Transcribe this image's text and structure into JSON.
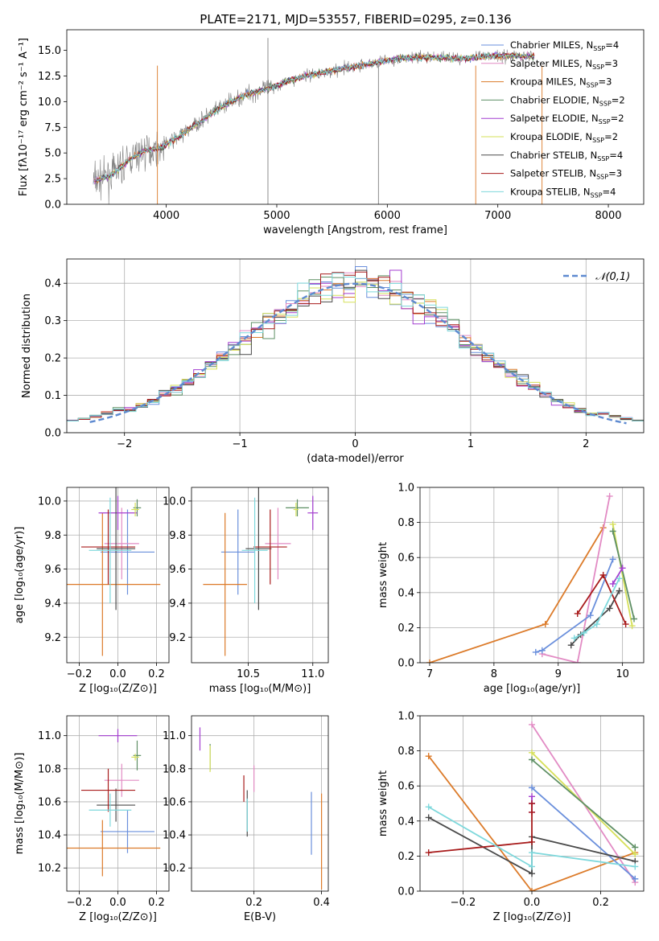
{
  "title": "PLATE=2171, MJD=53557, FIBERID=0295, z=0.136",
  "colors": {
    "Chabrier MILES": "#6a8fdc",
    "Salpeter MILES": "#e28bc4",
    "Kroupa MILES": "#dc7b2a",
    "Chabrier ELODIE": "#5e8f64",
    "Salpeter ELODIE": "#a43ed0",
    "Kroupa ELODIE": "#d6e05a",
    "Chabrier STELIB": "#4a4a4a",
    "Salpeter STELIB": "#a81c1c",
    "Kroupa STELIB": "#7ed8dc",
    "data": "#7f7f7f",
    "normal": "#5e8ad0"
  },
  "chart_data": [
    {
      "id": "spectrum",
      "type": "line",
      "xlabel": "wavelength [Angstrom, rest frame]",
      "ylabel": "Flux [fλ10⁻¹⁷ erg cm⁻² s⁻¹ A⁻¹]",
      "xlim": [
        3100,
        8320
      ],
      "ylim": [
        0,
        17
      ],
      "xticks": [
        4000,
        5000,
        6000,
        7000,
        8000
      ],
      "yticks": [
        0.0,
        2.5,
        5.0,
        7.5,
        10.0,
        12.5,
        15.0
      ],
      "legend_placement": "upper-right",
      "data_series_x": [
        3350,
        3500,
        3650,
        3800,
        3950,
        4100,
        4300,
        4500,
        4700,
        4900,
        5100,
        5300,
        5500,
        5700,
        5900,
        6100,
        6300,
        6500,
        6700,
        6900,
        7100,
        7300
      ],
      "data_series_y": [
        2.3,
        2.8,
        4.2,
        5.2,
        5.5,
        6.5,
        8.0,
        9.5,
        10.6,
        11.2,
        12.0,
        12.6,
        13.0,
        13.4,
        13.8,
        14.2,
        14.3,
        14.3,
        14.2,
        14.4,
        14.5,
        14.4
      ],
      "series": [
        {
          "name": "Chabrier MILES, N_SSP=4",
          "model": "Chabrier MILES"
        },
        {
          "name": "Salpeter MILES, N_SSP=3",
          "model": "Salpeter MILES"
        },
        {
          "name": "Kroupa MILES, N_SSP=3",
          "model": "Kroupa MILES"
        },
        {
          "name": "Chabrier ELODIE, N_SSP=2",
          "model": "Chabrier ELODIE"
        },
        {
          "name": "Salpeter ELODIE, N_SSP=2",
          "model": "Salpeter ELODIE"
        },
        {
          "name": "Kroupa ELODIE, N_SSP=2",
          "model": "Kroupa ELODIE"
        },
        {
          "name": "Chabrier STELIB, N_SSP=4",
          "model": "Chabrier STELIB"
        },
        {
          "name": "Salpeter STELIB, N_SSP=3",
          "model": "Salpeter STELIB"
        },
        {
          "name": "Kroupa STELIB, N_SSP=4",
          "model": "Kroupa STELIB"
        }
      ]
    },
    {
      "id": "residuals",
      "type": "histogram",
      "xlabel": "(data-model)/error",
      "ylabel": "Normed distribution",
      "xlim": [
        -2.5,
        2.5
      ],
      "ylim": [
        0,
        0.465
      ],
      "xticks": [
        -2,
        -1,
        0,
        1,
        2
      ],
      "yticks": [
        0.0,
        0.1,
        0.2,
        0.3,
        0.4
      ],
      "legend": "𝒩(0,1)",
      "legend_placement": "upper-right",
      "grid": true,
      "bin_width": 0.1,
      "bin_start": -2.5
    },
    {
      "id": "age-vs-z",
      "type": "errorbar",
      "xlabel": "Z [log₁₀(Z/Z⊙)]",
      "ylabel": "age  [log₁₀(age/yr)]",
      "xlim": [
        -0.265,
        0.265
      ],
      "ylim": [
        9.05,
        10.08
      ],
      "xticks": [
        -0.2,
        0.0,
        0.2
      ],
      "yticks": [
        9.2,
        9.4,
        9.6,
        9.8,
        10.0
      ],
      "points": [
        {
          "model": "Chabrier MILES",
          "x": 0.05,
          "y": 9.7,
          "xerr": 0.14,
          "yerr": 0.25
        },
        {
          "model": "Salpeter MILES",
          "x": 0.02,
          "y": 9.75,
          "xerr": 0.09,
          "yerr": 0.21
        },
        {
          "model": "Kroupa MILES",
          "x": -0.08,
          "y": 9.51,
          "xerr": 0.3,
          "yerr": 0.42
        },
        {
          "model": "Chabrier ELODIE",
          "x": 0.1,
          "y": 9.96,
          "xerr": 0.02,
          "yerr": 0.05
        },
        {
          "model": "Salpeter ELODIE",
          "x": 0.0,
          "y": 9.93,
          "xerr": 0.1,
          "yerr": 0.1
        },
        {
          "model": "Kroupa ELODIE",
          "x": 0.09,
          "y": 9.95,
          "xerr": 0.02,
          "yerr": 0.04
        },
        {
          "model": "Chabrier STELIB",
          "x": -0.01,
          "y": 9.72,
          "xerr": 0.1,
          "yerr": 0.36
        },
        {
          "model": "Salpeter STELIB",
          "x": -0.05,
          "y": 9.73,
          "xerr": 0.14,
          "yerr": 0.22
        },
        {
          "model": "Kroupa STELIB",
          "x": -0.04,
          "y": 9.71,
          "xerr": 0.11,
          "yerr": 0.31
        }
      ]
    },
    {
      "id": "age-vs-mass",
      "type": "errorbar",
      "xlabel": "mass [log₁₀(M/M⊙)]",
      "ylabel": "",
      "xlim": [
        10.06,
        11.12
      ],
      "ylim": [
        9.05,
        10.08
      ],
      "xticks": [
        10.5,
        11.0
      ],
      "yticks": [
        9.2,
        9.4,
        9.6,
        9.8,
        10.0
      ],
      "points": [
        {
          "model": "Chabrier MILES",
          "x": 10.42,
          "y": 9.7,
          "xerr": 0.13,
          "yerr": 0.25
        },
        {
          "model": "Salpeter MILES",
          "x": 10.73,
          "y": 9.75,
          "xerr": 0.1,
          "yerr": 0.21
        },
        {
          "model": "Kroupa MILES",
          "x": 10.32,
          "y": 9.51,
          "xerr": 0.17,
          "yerr": 0.42
        },
        {
          "model": "Chabrier ELODIE",
          "x": 10.88,
          "y": 9.96,
          "xerr": 0.09,
          "yerr": 0.05
        },
        {
          "model": "Salpeter ELODIE",
          "x": 11.0,
          "y": 9.93,
          "xerr": 0.04,
          "yerr": 0.1
        },
        {
          "model": "Kroupa ELODIE",
          "x": 10.87,
          "y": 9.95,
          "xerr": 0.02,
          "yerr": 0.04
        },
        {
          "model": "Chabrier STELIB",
          "x": 10.58,
          "y": 9.72,
          "xerr": 0.1,
          "yerr": 0.36
        },
        {
          "model": "Salpeter STELIB",
          "x": 10.67,
          "y": 9.73,
          "xerr": 0.13,
          "yerr": 0.22
        },
        {
          "model": "Kroupa STELIB",
          "x": 10.55,
          "y": 9.71,
          "xerr": 0.1,
          "yerr": 0.31
        }
      ]
    },
    {
      "id": "weight-vs-age",
      "type": "line",
      "xlabel": "age  [log₁₀(age/yr)]",
      "ylabel": "mass weight",
      "xlim": [
        6.85,
        10.33
      ],
      "ylim": [
        0,
        1
      ],
      "xticks": [
        7,
        8,
        9,
        10
      ],
      "yticks": [
        0.0,
        0.2,
        0.4,
        0.6,
        0.8,
        1.0
      ],
      "series": [
        {
          "model": "Kroupa MILES",
          "x": [
            7.0,
            8.8,
            9.7
          ],
          "y": [
            0.0,
            0.22,
            0.77
          ]
        },
        {
          "model": "Salpeter MILES",
          "x": [
            8.75,
            9.3,
            9.8
          ],
          "y": [
            0.05,
            0.0,
            0.95
          ]
        },
        {
          "model": "Chabrier MILES",
          "x": [
            8.65,
            8.75,
            9.5,
            9.85
          ],
          "y": [
            0.06,
            0.07,
            0.27,
            0.59
          ]
        },
        {
          "model": "Kroupa ELODIE",
          "x": [
            9.85,
            10.15
          ],
          "y": [
            0.79,
            0.21
          ]
        },
        {
          "model": "Chabrier ELODIE",
          "x": [
            9.85,
            10.18
          ],
          "y": [
            0.75,
            0.25
          ]
        },
        {
          "model": "Salpeter ELODIE",
          "x": [
            9.85,
            10.0
          ],
          "y": [
            0.45,
            0.54
          ]
        },
        {
          "model": "Chabrier STELIB",
          "x": [
            9.2,
            9.35,
            9.8,
            9.95
          ],
          "y": [
            0.1,
            0.16,
            0.31,
            0.41
          ]
        },
        {
          "model": "Salpeter STELIB",
          "x": [
            9.3,
            9.7,
            10.05
          ],
          "y": [
            0.28,
            0.5,
            0.22
          ]
        },
        {
          "model": "Kroupa STELIB",
          "x": [
            9.25,
            9.4,
            9.6,
            9.95
          ],
          "y": [
            0.14,
            0.17,
            0.22,
            0.48
          ]
        }
      ]
    },
    {
      "id": "mass-vs-z",
      "type": "errorbar",
      "xlabel": "Z [log₁₀(Z/Z⊙)]",
      "ylabel": "mass [log₁₀(M/M⊙)]",
      "xlim": [
        -0.265,
        0.265
      ],
      "ylim": [
        10.06,
        11.12
      ],
      "xticks": [
        -0.2,
        0.0,
        0.2
      ],
      "yticks": [
        10.2,
        10.4,
        10.6,
        10.8,
        11.0
      ],
      "points": [
        {
          "model": "Chabrier MILES",
          "x": 0.05,
          "y": 10.42,
          "xerr": 0.14,
          "yerr": 0.13
        },
        {
          "model": "Salpeter MILES",
          "x": 0.02,
          "y": 10.73,
          "xerr": 0.09,
          "yerr": 0.1
        },
        {
          "model": "Kroupa MILES",
          "x": -0.08,
          "y": 10.32,
          "xerr": 0.3,
          "yerr": 0.17
        },
        {
          "model": "Chabrier ELODIE",
          "x": 0.1,
          "y": 10.88,
          "xerr": 0.02,
          "yerr": 0.09
        },
        {
          "model": "Salpeter ELODIE",
          "x": 0.0,
          "y": 11.0,
          "xerr": 0.1,
          "yerr": 0.04
        },
        {
          "model": "Kroupa ELODIE",
          "x": 0.09,
          "y": 10.87,
          "xerr": 0.02,
          "yerr": 0.02
        },
        {
          "model": "Chabrier STELIB",
          "x": -0.01,
          "y": 10.58,
          "xerr": 0.1,
          "yerr": 0.1
        },
        {
          "model": "Salpeter STELIB",
          "x": -0.05,
          "y": 10.67,
          "xerr": 0.14,
          "yerr": 0.13
        },
        {
          "model": "Kroupa STELIB",
          "x": -0.04,
          "y": 10.55,
          "xerr": 0.11,
          "yerr": 0.1
        }
      ]
    },
    {
      "id": "mass-vs-ebv",
      "type": "errorbar",
      "xlabel": "E(B-V)",
      "ylabel": "",
      "xlim": [
        0.015,
        0.42
      ],
      "ylim": [
        10.06,
        11.12
      ],
      "xticks": [
        0.2,
        0.4
      ],
      "yticks": [
        10.2,
        10.4,
        10.6,
        10.8,
        11.0
      ],
      "points": [
        {
          "model": "Chabrier MILES",
          "x": 0.37,
          "y": 10.47,
          "xerr": 0,
          "yerr": 0.19
        },
        {
          "model": "Salpeter MILES",
          "x": 0.2,
          "y": 10.74,
          "xerr": 0,
          "yerr": 0.08
        },
        {
          "model": "Kroupa MILES",
          "x": 0.4,
          "y": 10.36,
          "xerr": 0,
          "yerr": 0.29
        },
        {
          "model": "Chabrier ELODIE",
          "x": 0.07,
          "y": 10.87,
          "xerr": 0,
          "yerr": 0.08
        },
        {
          "model": "Salpeter ELODIE",
          "x": 0.04,
          "y": 10.98,
          "xerr": 0,
          "yerr": 0.07
        },
        {
          "model": "Kroupa ELODIE",
          "x": 0.07,
          "y": 10.86,
          "xerr": 0,
          "yerr": 0.08
        },
        {
          "model": "Chabrier STELIB",
          "x": 0.18,
          "y": 10.53,
          "xerr": 0,
          "yerr": 0.14
        },
        {
          "model": "Salpeter STELIB",
          "x": 0.17,
          "y": 10.68,
          "xerr": 0,
          "yerr": 0.08
        },
        {
          "model": "Kroupa STELIB",
          "x": 0.18,
          "y": 10.52,
          "xerr": 0,
          "yerr": 0.1
        }
      ]
    },
    {
      "id": "weight-vs-z",
      "type": "line",
      "xlabel": "Z [log₁₀(Z/Z⊙)]",
      "ylabel": "mass weight",
      "xlim": [
        -0.325,
        0.325
      ],
      "ylim": [
        0,
        1
      ],
      "xticks": [
        -0.2,
        0.0,
        0.2
      ],
      "yticks": [
        0.0,
        0.2,
        0.4,
        0.6,
        0.8,
        1.0
      ],
      "series": [
        {
          "model": "Kroupa MILES",
          "x": [
            -0.3,
            0.0,
            0.3
          ],
          "y": [
            0.77,
            0.0,
            0.22
          ]
        },
        {
          "model": "Salpeter MILES",
          "x": [
            0.0,
            0.3
          ],
          "y": [
            0.95,
            0.05
          ]
        },
        {
          "model": "Chabrier MILES",
          "x": [
            0.0,
            0.3
          ],
          "y": [
            0.59,
            0.07
          ]
        },
        {
          "model": "Kroupa ELODIE",
          "x": [
            0.0,
            0.3
          ],
          "y": [
            0.79,
            0.21
          ]
        },
        {
          "model": "Chabrier ELODIE",
          "x": [
            0.0,
            0.3
          ],
          "y": [
            0.75,
            0.25
          ]
        },
        {
          "model": "Salpeter ELODIE",
          "x": [
            0.0,
            0.0,
            0.0
          ],
          "y": [
            0.45,
            0.5,
            0.54
          ]
        },
        {
          "model": "Chabrier STELIB",
          "x": [
            -0.3,
            0.0,
            0.0,
            0.3
          ],
          "y": [
            0.42,
            0.1,
            0.31,
            0.17
          ]
        },
        {
          "model": "Salpeter STELIB",
          "x": [
            -0.3,
            0.0,
            0.0,
            0.0
          ],
          "y": [
            0.22,
            0.28,
            0.5,
            0.45
          ]
        },
        {
          "model": "Kroupa STELIB",
          "x": [
            -0.3,
            0.0,
            0.0,
            0.3
          ],
          "y": [
            0.48,
            0.14,
            0.22,
            0.14
          ]
        }
      ]
    }
  ]
}
